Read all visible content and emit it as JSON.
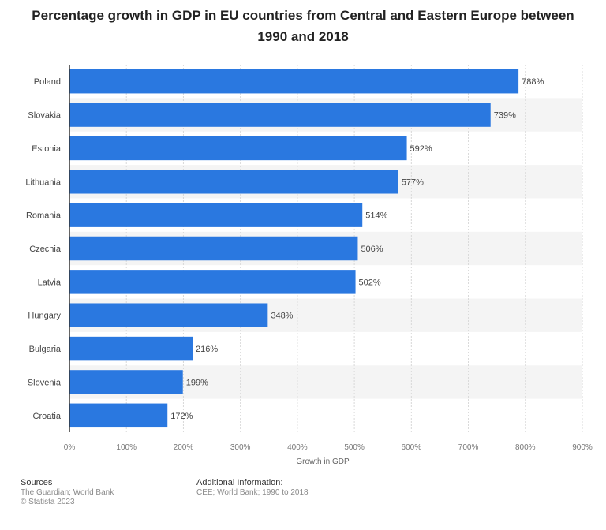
{
  "title_lines": [
    "Percentage growth in GDP in EU countries from Central and Eastern Europe between",
    "1990 and 2018"
  ],
  "colors": {
    "bar": "#2a78e0",
    "band": "#f4f4f4",
    "grid": "#d8d8d8",
    "axis": "#333333"
  },
  "chart_data": {
    "type": "bar",
    "orientation": "horizontal",
    "categories": [
      "Poland",
      "Slovakia",
      "Estonia",
      "Lithuania",
      "Romania",
      "Czechia",
      "Latvia",
      "Hungary",
      "Bulgaria",
      "Slovenia",
      "Croatia"
    ],
    "values": [
      788,
      739,
      592,
      577,
      514,
      506,
      502,
      348,
      216,
      199,
      172
    ],
    "value_labels": [
      "788%",
      "739%",
      "592%",
      "577%",
      "514%",
      "506%",
      "502%",
      "348%",
      "216%",
      "199%",
      "172%"
    ],
    "xticks": [
      "0%",
      "100%",
      "200%",
      "300%",
      "400%",
      "500%",
      "600%",
      "700%",
      "800%",
      "900%"
    ],
    "xlabel": "Growth in GDP",
    "xlim": [
      0,
      900
    ],
    "grid": true
  },
  "footer": {
    "sources_heading": "Sources",
    "sources_lines": [
      "The Guardian; World Bank",
      "© Statista 2023"
    ],
    "info_heading": "Additional Information:",
    "info_lines": [
      "CEE; World Bank; 1990 to 2018"
    ]
  }
}
